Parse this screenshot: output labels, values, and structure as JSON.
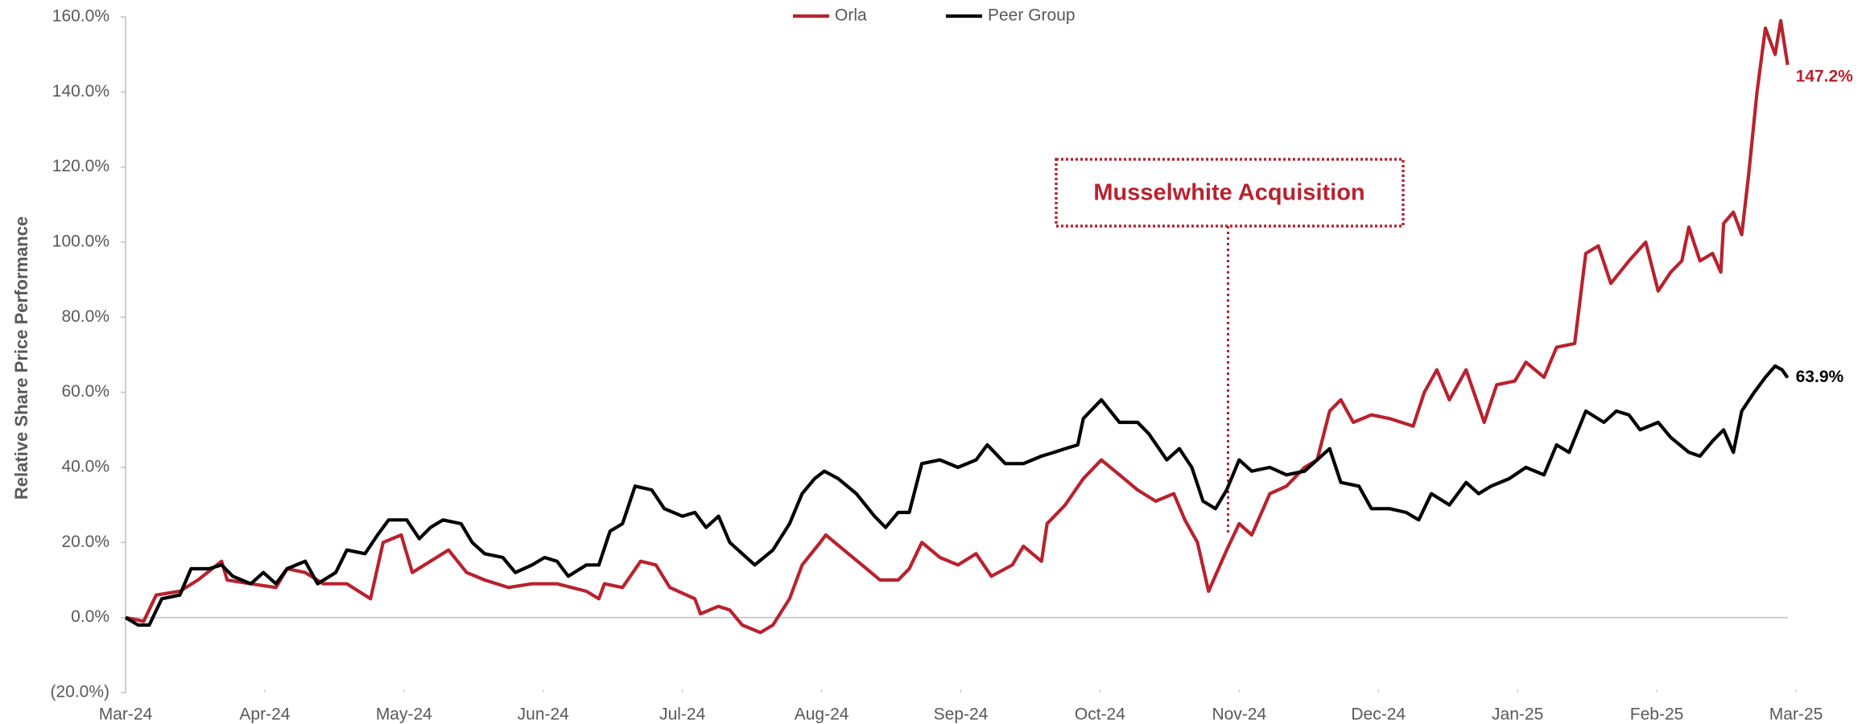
{
  "chart_data": {
    "type": "line",
    "y_label": "Relative Share Price Performance",
    "xlim": [
      0,
      12
    ],
    "xticks": [
      {
        "value": 0,
        "label": "Mar-24"
      },
      {
        "value": 1,
        "label": "Apr-24"
      },
      {
        "value": 2,
        "label": "May-24"
      },
      {
        "value": 3,
        "label": "Jun-24"
      },
      {
        "value": 4,
        "label": "Jul-24"
      },
      {
        "value": 5,
        "label": "Aug-24"
      },
      {
        "value": 6,
        "label": "Sep-24"
      },
      {
        "value": 7,
        "label": "Oct-24"
      },
      {
        "value": 8,
        "label": "Nov-24"
      },
      {
        "value": 9,
        "label": "Dec-24"
      },
      {
        "value": 10,
        "label": "Jan-25"
      },
      {
        "value": 11,
        "label": "Feb-25"
      },
      {
        "value": 12,
        "label": "Mar-25"
      }
    ],
    "ylim": [
      -20,
      160
    ],
    "yticks": [
      {
        "value": -20,
        "label": "(20.0%)"
      },
      {
        "value": 0,
        "label": "0.0%"
      },
      {
        "value": 20,
        "label": "20.0%"
      },
      {
        "value": 40,
        "label": "40.0%"
      },
      {
        "value": 60,
        "label": "60.0%"
      },
      {
        "value": 80,
        "label": "80.0%"
      },
      {
        "value": 100,
        "label": "100.0%"
      },
      {
        "value": 120,
        "label": "120.0%"
      },
      {
        "value": 140,
        "label": "140.0%"
      },
      {
        "value": 160,
        "label": "160.0%"
      }
    ],
    "legend": "top",
    "annotation": {
      "text": "Musselwhite Acquisition",
      "x": 7.92,
      "color": "#b8222e"
    },
    "series": [
      {
        "name": "Orla",
        "color": "#b8222e",
        "end_label": "147.2%",
        "x": [
          0,
          0.13,
          0.22,
          0.39,
          0.52,
          0.69,
          0.73,
          0.9,
          1.08,
          1.16,
          1.29,
          1.42,
          1.59,
          1.76,
          1.85,
          1.98,
          2.06,
          2.19,
          2.32,
          2.45,
          2.58,
          2.75,
          2.92,
          3.1,
          3.31,
          3.4,
          3.44,
          3.57,
          3.7,
          3.81,
          3.91,
          4.09,
          4.13,
          4.26,
          4.34,
          4.43,
          4.56,
          4.65,
          4.77,
          4.86,
          4.99,
          5.03,
          5.16,
          5.29,
          5.42,
          5.55,
          5.63,
          5.72,
          5.85,
          5.98,
          6.11,
          6.22,
          6.37,
          6.45,
          6.58,
          6.62,
          6.75,
          6.88,
          7.01,
          7.14,
          7.27,
          7.4,
          7.53,
          7.61,
          7.7,
          7.78,
          7.91,
          8.0,
          8.09,
          8.22,
          8.34,
          8.47,
          8.56,
          8.65,
          8.73,
          8.82,
          8.95,
          9.08,
          9.25,
          9.33,
          9.42,
          9.51,
          9.63,
          9.76,
          9.85,
          9.98,
          10.06,
          10.19,
          10.28,
          10.41,
          10.49,
          10.58,
          10.67,
          10.8,
          10.92,
          11.01,
          11.1,
          11.18,
          11.23,
          11.31,
          11.4,
          11.46,
          11.48,
          11.55,
          11.61,
          11.66,
          11.72,
          11.78,
          11.85,
          11.89,
          11.94
        ],
        "values": [
          0,
          -1,
          6,
          7,
          10,
          15,
          10,
          9,
          8,
          13,
          12,
          9,
          9,
          5,
          20,
          22,
          12,
          15,
          18,
          12,
          10,
          8,
          9,
          9,
          7,
          5,
          9,
          8,
          15,
          14,
          8,
          5,
          1,
          3,
          2,
          -2,
          -4,
          -2,
          5,
          14,
          20,
          22,
          18,
          14,
          10,
          10,
          13,
          20,
          16,
          14,
          17,
          11,
          14,
          19,
          15,
          25,
          30,
          37,
          42,
          38,
          34,
          31,
          33,
          26,
          20,
          7,
          18,
          25,
          22,
          33,
          35,
          40,
          42,
          55,
          58,
          52,
          54,
          53,
          51,
          60,
          66,
          58,
          66,
          52,
          62,
          63,
          68,
          64,
          72,
          73,
          97,
          99,
          89,
          95,
          100,
          87,
          92,
          95,
          104,
          95,
          97,
          92,
          105,
          108,
          102,
          118,
          140,
          157,
          150,
          159,
          147.2
        ]
      },
      {
        "name": "Peer Group",
        "color": "#000000",
        "end_label": "63.9%",
        "x": [
          0,
          0.09,
          0.17,
          0.26,
          0.39,
          0.47,
          0.6,
          0.69,
          0.77,
          0.9,
          0.99,
          1.08,
          1.16,
          1.29,
          1.38,
          1.51,
          1.59,
          1.72,
          1.81,
          1.89,
          2.02,
          2.11,
          2.19,
          2.28,
          2.41,
          2.49,
          2.58,
          2.71,
          2.8,
          2.92,
          3.01,
          3.1,
          3.18,
          3.31,
          3.4,
          3.48,
          3.57,
          3.66,
          3.78,
          3.87,
          4.0,
          4.09,
          4.17,
          4.26,
          4.34,
          4.52,
          4.65,
          4.77,
          4.86,
          4.95,
          5.02,
          5.12,
          5.25,
          5.38,
          5.46,
          5.55,
          5.63,
          5.72,
          5.85,
          5.98,
          6.11,
          6.19,
          6.32,
          6.45,
          6.58,
          6.67,
          6.75,
          6.84,
          6.88,
          7.01,
          7.14,
          7.27,
          7.35,
          7.48,
          7.57,
          7.66,
          7.74,
          7.83,
          7.91,
          8.0,
          8.09,
          8.22,
          8.34,
          8.47,
          8.65,
          8.73,
          8.86,
          8.95,
          9.08,
          9.2,
          9.29,
          9.38,
          9.51,
          9.63,
          9.72,
          9.81,
          9.94,
          10.06,
          10.19,
          10.28,
          10.37,
          10.49,
          10.62,
          10.71,
          10.8,
          10.88,
          11.01,
          11.1,
          11.23,
          11.31,
          11.4,
          11.48,
          11.55,
          11.61,
          11.7,
          11.78,
          11.85,
          11.9,
          11.94
        ],
        "values": [
          0,
          -2,
          -2,
          5,
          6,
          13,
          13,
          14,
          11,
          9,
          12,
          9,
          13,
          15,
          9,
          12,
          18,
          17,
          22,
          26,
          26,
          21,
          24,
          26,
          25,
          20,
          17,
          16,
          12,
          14,
          16,
          15,
          11,
          14,
          14,
          23,
          25,
          35,
          34,
          29,
          27,
          28,
          24,
          27,
          20,
          14,
          18,
          25,
          33,
          37,
          39,
          37,
          33,
          27,
          24,
          28,
          28,
          41,
          42,
          40,
          42,
          46,
          41,
          41,
          43,
          44,
          45,
          46,
          53,
          58,
          52,
          52,
          49,
          42,
          45,
          40,
          31,
          29,
          34,
          42,
          39,
          40,
          38,
          39,
          45,
          36,
          35,
          29,
          29,
          28,
          26,
          33,
          30,
          36,
          33,
          35,
          37,
          40,
          38,
          46,
          44,
          55,
          52,
          55,
          54,
          50,
          52,
          48,
          44,
          43,
          47,
          50,
          44,
          55,
          60,
          64,
          67,
          66,
          63.9
        ]
      }
    ]
  }
}
